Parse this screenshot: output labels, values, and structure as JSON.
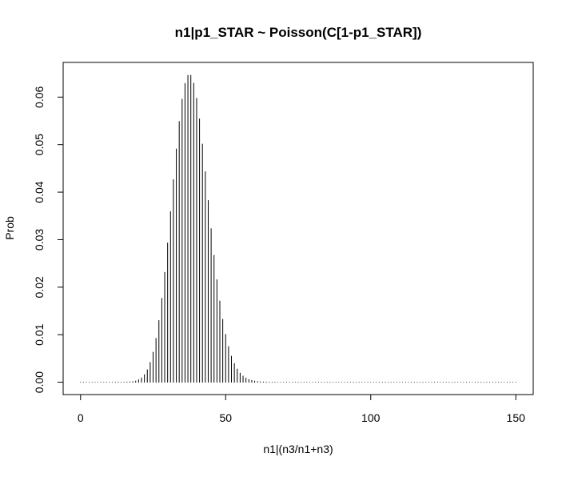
{
  "chart_data": {
    "type": "histline",
    "title": "n1|p1_STAR ~ Poisson(C[1-p1_STAR])",
    "x_label": "n1|(n3/n1+n3)",
    "y_label": "Prob",
    "color": "#000000",
    "x": [
      0,
      1,
      2,
      3,
      4,
      5,
      6,
      7,
      8,
      9,
      10,
      11,
      12,
      13,
      14,
      15,
      16,
      17,
      18,
      19,
      20,
      21,
      22,
      23,
      24,
      25,
      26,
      27,
      28,
      29,
      30,
      31,
      32,
      33,
      34,
      35,
      36,
      37,
      38,
      39,
      40,
      41,
      42,
      43,
      44,
      45,
      46,
      47,
      48,
      49,
      50,
      51,
      52,
      53,
      54,
      55,
      56,
      57,
      58,
      59,
      60,
      61,
      62,
      63,
      64,
      65,
      66,
      67,
      68,
      69,
      70,
      71,
      72,
      73,
      74,
      75,
      76,
      77,
      78,
      79,
      80,
      81,
      82,
      83,
      84,
      85,
      86,
      87,
      88,
      89,
      90,
      91,
      92,
      93,
      94,
      95,
      96,
      97,
      98,
      99,
      100,
      101,
      102,
      103,
      104,
      105,
      106,
      107,
      108,
      109,
      110,
      111,
      112,
      113,
      114,
      115,
      116,
      117,
      118,
      119,
      120,
      121,
      122,
      123,
      124,
      125,
      126,
      127,
      128,
      129,
      130,
      131,
      132,
      133,
      134,
      135,
      136,
      137,
      138,
      139,
      140,
      141,
      142,
      143,
      144,
      145,
      146,
      147,
      148,
      149,
      150
    ],
    "values": [
      0,
      0,
      0,
      0,
      0,
      0,
      0,
      0,
      0,
      0,
      0,
      0,
      0,
      1.7e-06,
      4.7e-06,
      1.2e-05,
      2.84e-05,
      6.35e-05,
      0.000134,
      0.00027,
      0.00051,
      0.00092,
      0.00159,
      0.00263,
      0.00416,
      0.00632,
      0.00924,
      0.013,
      0.01765,
      0.02312,
      0.02929,
      0.0359,
      0.04263,
      0.04909,
      0.05487,
      0.05957,
      0.06288,
      0.06458,
      0.06458,
      0.06292,
      0.05977,
      0.0554,
      0.05012,
      0.04429,
      0.03825,
      0.0323,
      0.02668,
      0.02157,
      0.01708,
      0.01325,
      0.01007,
      0.0075,
      0.00548,
      0.00393,
      0.00277,
      0.00191,
      0.0013,
      0.00087,
      0.00057,
      0.00037,
      0.00023,
      0.00014,
      8.8e-05,
      5.3e-05,
      3.1e-05,
      1.8e-05,
      1e-05,
      5.8e-06,
      0,
      0,
      0,
      0,
      0,
      0,
      0,
      0,
      0,
      0,
      0,
      0,
      0,
      0,
      0,
      0,
      0,
      0,
      0,
      0,
      0,
      0,
      0,
      0,
      0,
      0,
      0,
      0,
      0,
      0,
      0,
      0,
      0,
      0,
      0,
      0,
      0,
      0,
      0,
      0,
      0,
      0,
      0,
      0,
      0,
      0,
      0,
      0,
      0,
      0,
      0,
      0,
      0,
      0,
      0,
      0,
      0,
      0,
      0,
      0,
      0,
      0,
      0,
      0,
      0,
      0,
      0,
      0,
      0,
      0,
      0,
      0,
      0,
      0,
      0,
      0,
      0,
      0,
      0,
      0,
      0,
      0,
      0
    ],
    "xlim": [
      -6,
      156
    ],
    "ylim": [
      -0.0026,
      0.0673
    ],
    "xticks": [
      0,
      50,
      100,
      150
    ],
    "yticks": [
      {
        "value": 0,
        "label": "0.00"
      },
      {
        "value": 0.01,
        "label": "0.01"
      },
      {
        "value": 0.02,
        "label": "0.02"
      },
      {
        "value": 0.03,
        "label": "0.03"
      },
      {
        "value": 0.04,
        "label": "0.04"
      },
      {
        "value": 0.05,
        "label": "0.05"
      },
      {
        "value": 0.06,
        "label": "0.06"
      }
    ],
    "grid": false
  }
}
